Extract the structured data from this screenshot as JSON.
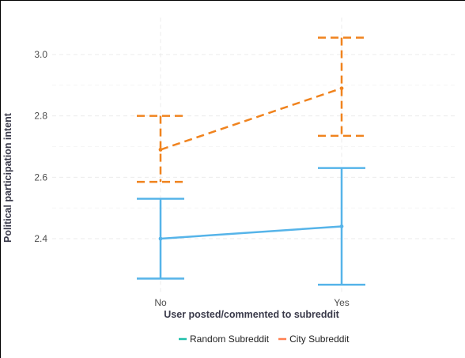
{
  "chart_data": {
    "type": "line",
    "xlabel": "User posted/commented to subreddit",
    "ylabel": "Political participation intent",
    "categories": [
      "No",
      "Yes"
    ],
    "yticks": [
      2.4,
      2.6,
      2.8,
      3.0
    ],
    "ytick_labels": [
      "2.4",
      "2.6",
      "2.8",
      "3.0"
    ],
    "ylim": [
      2.22,
      3.12
    ],
    "grid": true,
    "legend_position": "bottom",
    "series": [
      {
        "name": "Random Subreddit",
        "legend_swatch_color": "#1fbfaa",
        "color": "#56b4e9",
        "line_style": "solid",
        "values": [
          2.4,
          2.44
        ],
        "lower": [
          2.27,
          2.25
        ],
        "upper": [
          2.53,
          2.63
        ]
      },
      {
        "name": "City Subreddit",
        "legend_swatch_color": "#ff7f50",
        "color": "#f0831e",
        "line_style": "dashed",
        "values": [
          2.69,
          2.89
        ],
        "lower": [
          2.585,
          2.735
        ],
        "upper": [
          2.8,
          3.055
        ]
      }
    ]
  }
}
